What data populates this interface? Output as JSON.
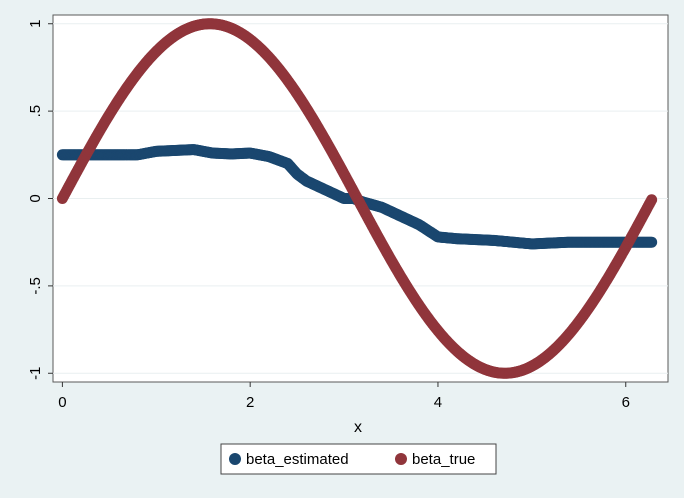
{
  "chart_data": {
    "type": "scatter",
    "xlabel": "x",
    "ylabel": "",
    "xlim": [
      -0.1,
      6.45
    ],
    "ylim": [
      -1.05,
      1.05
    ],
    "x_ticks": [
      0,
      2,
      4,
      6
    ],
    "x_tick_labels": [
      "0",
      "2",
      "4",
      "6"
    ],
    "y_ticks": [
      -1,
      -0.5,
      0,
      0.5,
      1
    ],
    "y_tick_labels": [
      "-1",
      "-.5",
      "0",
      ".5",
      "1"
    ],
    "grid": true,
    "legend_position": "bottom",
    "series": [
      {
        "name": "beta_estimated",
        "color": "#1a476f",
        "x": [
          0.0,
          0.2,
          0.4,
          0.6,
          0.8,
          1.0,
          1.2,
          1.4,
          1.5,
          1.6,
          1.8,
          2.0,
          2.2,
          2.4,
          2.5,
          2.6,
          2.8,
          3.0,
          3.1,
          3.2,
          3.4,
          3.6,
          3.8,
          4.0,
          4.2,
          4.4,
          4.6,
          4.8,
          5.0,
          5.2,
          5.4,
          5.6,
          5.8,
          6.0,
          6.28
        ],
        "y": [
          0.25,
          0.25,
          0.25,
          0.25,
          0.25,
          0.27,
          0.275,
          0.28,
          0.27,
          0.26,
          0.255,
          0.26,
          0.24,
          0.2,
          0.14,
          0.1,
          0.05,
          0.0,
          0.0,
          -0.02,
          -0.05,
          -0.1,
          -0.15,
          -0.22,
          -0.23,
          -0.235,
          -0.24,
          -0.25,
          -0.26,
          -0.255,
          -0.25,
          -0.25,
          -0.25,
          -0.25,
          -0.25
        ]
      },
      {
        "name": "beta_true",
        "color": "#90353b",
        "function": "sin",
        "x_range": [
          0,
          6.28
        ]
      }
    ]
  },
  "legend": {
    "items": [
      {
        "label": "beta_estimated",
        "color": "#1a476f"
      },
      {
        "label": "beta_true",
        "color": "#90353b"
      }
    ]
  }
}
